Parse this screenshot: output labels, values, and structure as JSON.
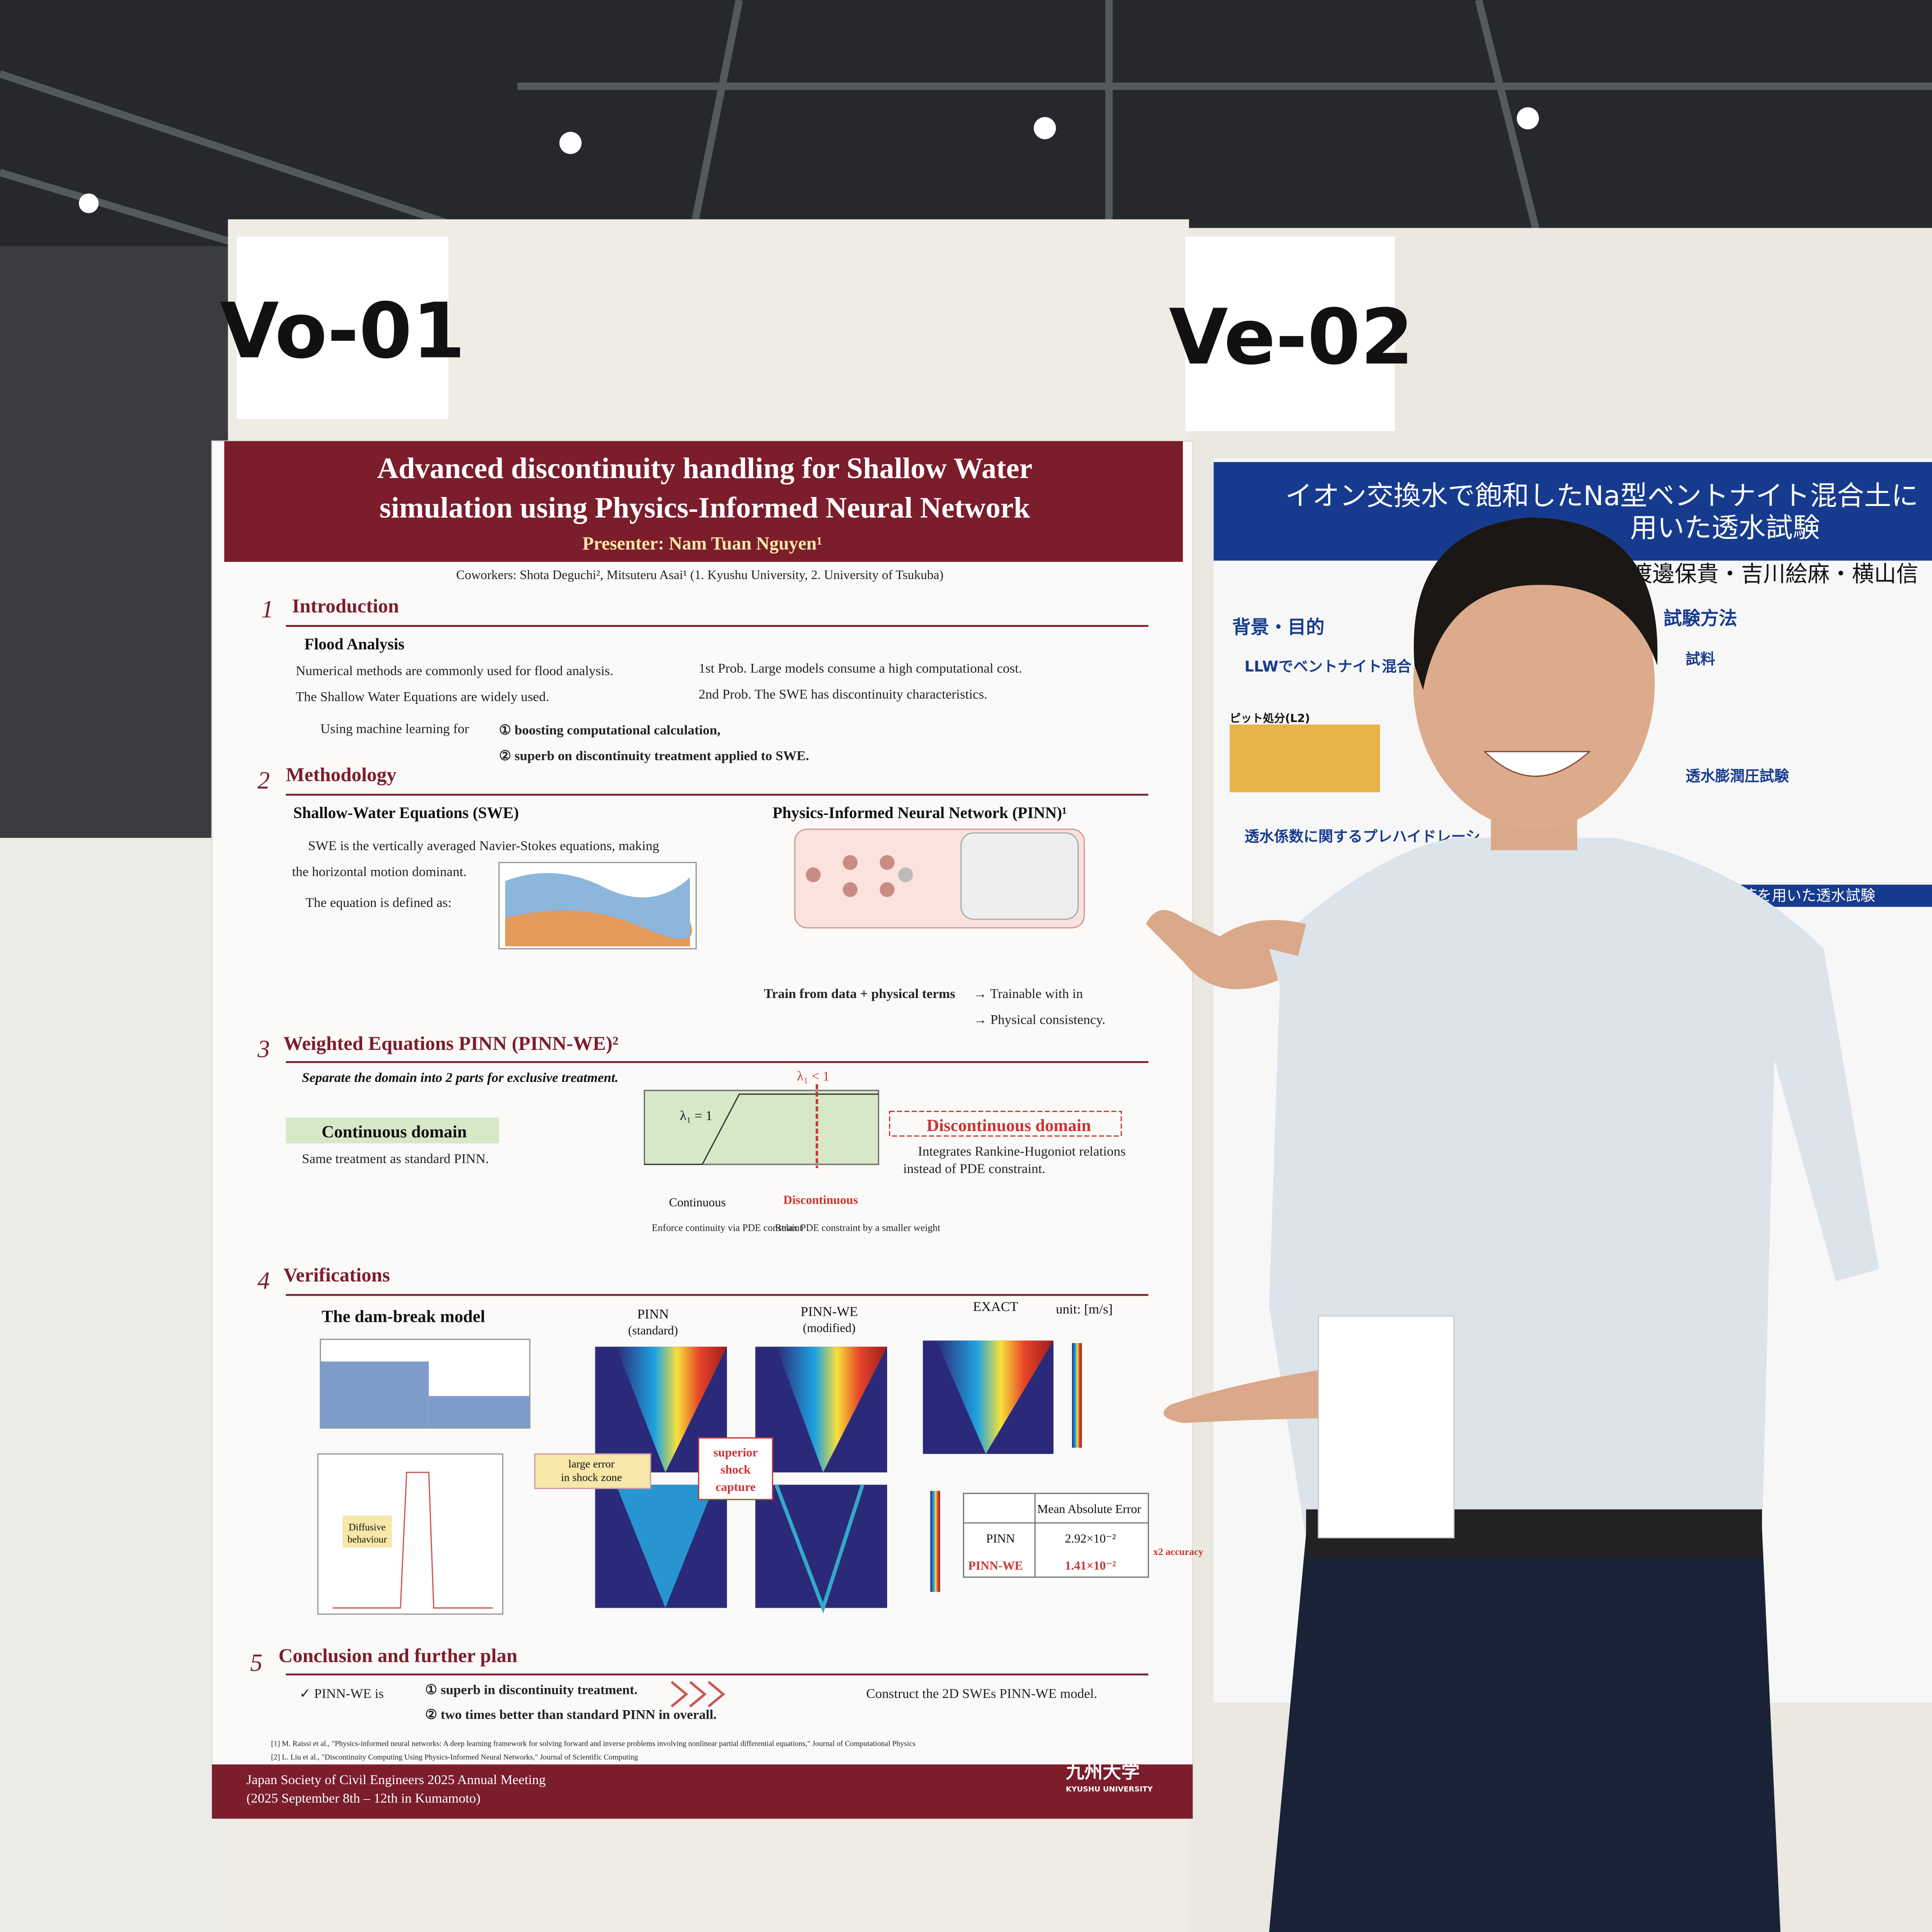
{
  "signs": [
    "Vo-01",
    "Ve-02"
  ],
  "poster": {
    "title": [
      "Advanced discontinuity handling for Shallow Water",
      "simulation using Physics-Informed Neural Network"
    ],
    "presenter": "Presenter: Nam Tuan Nguyen¹",
    "coworkers": "Coworkers: Shota Deguchi², Mitsuteru Asai¹ (1. Kyushu University, 2. University of Tsukuba)",
    "sections": [
      {
        "number": "1",
        "heading": "Introduction",
        "subheading": "Flood Analysis",
        "lines": [
          "Numerical methods are commonly used for flood analysis.",
          "The Shallow Water Equations are widely used.",
          "1st Prob. Large models consume a high computational cost.",
          "2nd Prob. The SWE has discontinuity characteristics.",
          "Using machine learning for",
          "① boosting computational calculation,",
          "② superb on discontinuity treatment applied to SWE."
        ]
      },
      {
        "number": "2",
        "heading": "Methodology",
        "subheading": "Shallow-Water Equations (SWE)",
        "subheading2": "Physics-Informed Neural Network (PINN)¹",
        "lines": [
          "SWE is the vertically averaged Navier-Stokes equations, making",
          "the horizontal motion dominant.",
          "The equation is defined as:",
          "Train from data + physical terms",
          "→ Trainable with in",
          "→ Physical consistency."
        ]
      },
      {
        "number": "3",
        "heading": "Weighted Equations PINN (PINN-WE)²",
        "subheading": "Continuous domain",
        "subheading2": "Discontinuous domain",
        "lines": [
          "Separate the domain into 2 parts for exclusive treatment.",
          "Same treatment as standard PINN.",
          "Integrates Rankine-Hugoniot relations",
          "instead of PDE constraint.",
          "Enforce continuity via PDE constraint",
          "Relax PDE constraint by a smaller weight"
        ],
        "labels": [
          "Continuous",
          "Discontinuous",
          "λ₁ < 1",
          "λ₁ = 1"
        ]
      },
      {
        "number": "4",
        "heading": "Verifications",
        "subheading": "The dam-break model",
        "labels": [
          "PINN",
          "(standard)",
          "PINN-WE",
          "(modified)",
          "EXACT",
          "unit: [m/s]",
          "large error",
          "in shock zone",
          "superior",
          "shock",
          "capture",
          "Diffusive",
          "behaviour"
        ],
        "table": {
          "header": "Mean Absolute Error",
          "rows": [
            [
              "PINN",
              "2.92×10⁻²"
            ],
            [
              "PINN-WE",
              "1.41×10⁻²"
            ]
          ],
          "note": "x2 accuracy"
        }
      },
      {
        "number": "5",
        "heading": "Conclusion and further plan",
        "lines": [
          "✓ PINN-WE is",
          "① superb in discontinuity treatment.",
          "② two times better than standard PINN in overall.",
          "Construct the 2D SWEs PINN-WE model."
        ]
      }
    ],
    "references": [
      "[1] M. Raissi et al., \"Physics-informed neural networks: A deep learning framework for solving forward and inverse problems involving nonlinear partial differential equations,\" Journal of Computational Physics",
      "[2] L. Liu et al., \"Discontinuity Computing Using Physics-Informed Neural Networks,\" Journal of Scientific Computing"
    ],
    "footer": [
      "Japan Society of Civil Engineers 2025 Annual Meeting",
      "(2025 September 8th – 12th in Kumamoto)"
    ],
    "logo": [
      "九州大学",
      "KYUSHU UNIVERSITY"
    ]
  },
  "other_poster": {
    "title": [
      "イオン交換水で飽和したNa型ベントナイト混合土に",
      "用いた透水試験"
    ],
    "authors": "渡邊保貴・吉川絵麻・横山信",
    "headings": [
      "背景・目的",
      "試験方法"
    ],
    "lines": [
      "LLWでベントナイト混合",
      "ピット処分(L2)",
      "透水係数に関するプレハイドレーシ",
      "試料",
      "透水膨潤圧試験",
      "単一溶液を用いた透水試験"
    ]
  }
}
